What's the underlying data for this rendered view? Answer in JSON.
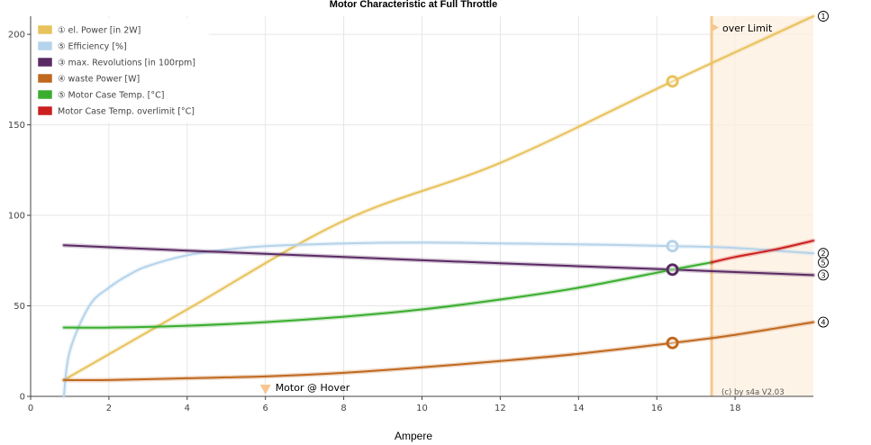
{
  "chart_data": {
    "type": "line",
    "title": "Motor Characteristic at Full Throttle",
    "xlabel": "Ampere",
    "ylabel": "",
    "xlim": [
      0,
      20
    ],
    "ylim": [
      0,
      210
    ],
    "x_ticks": [
      "0",
      "2",
      "4",
      "6",
      "8",
      "10",
      "12",
      "14",
      "16",
      "18"
    ],
    "y_ticks": [
      "0",
      "50",
      "100",
      "150",
      "200"
    ],
    "grid": true,
    "legend_position": "top-left",
    "series": [
      {
        "name": "① el. Power [in 2W]",
        "marker": "①",
        "color": "#e8c25c",
        "x": [
          0.85,
          4,
          8,
          12,
          16.4,
          20
        ],
        "y": [
          9,
          48,
          97,
          129,
          174,
          210
        ]
      },
      {
        "name": "⑤ Efficiency [%]",
        "marker": "②",
        "color": "#b5d3ea",
        "x": [
          0.85,
          1.0,
          1.5,
          2,
          2.5,
          3,
          4,
          5,
          6,
          8,
          10,
          12,
          14,
          16.4,
          18,
          20
        ],
        "y": [
          0,
          25,
          50,
          60,
          67,
          72,
          78,
          81,
          83,
          84.5,
          85,
          84.5,
          84,
          83,
          82,
          79
        ]
      },
      {
        "name": "③ max. Revolutions [in 100rpm]",
        "marker": "③",
        "color": "#5a2a64",
        "x": [
          0.85,
          4,
          8,
          12,
          16.4,
          20
        ],
        "y": [
          83.5,
          80.5,
          77,
          73.5,
          70,
          67
        ]
      },
      {
        "name": "④ waste Power [W]",
        "marker": "④",
        "color": "#c0681e",
        "x": [
          0.85,
          2,
          4,
          6,
          8,
          10,
          12,
          14,
          16.4,
          18,
          20
        ],
        "y": [
          9,
          9,
          10,
          11,
          13,
          16,
          19.5,
          23.5,
          29.5,
          34,
          41
        ]
      },
      {
        "name": "⑤ Motor Case Temp. [°C]",
        "marker": "⑤",
        "color": "#3aad2e",
        "x": [
          0.85,
          2,
          4,
          6,
          8,
          10,
          12,
          14,
          16.4,
          17.4
        ],
        "y": [
          38,
          38,
          39,
          41,
          44,
          48,
          53.5,
          60,
          70,
          74
        ]
      },
      {
        "name": "Motor Case Temp. overlimit [°C]",
        "marker": "",
        "color": "#cc1f1f",
        "x": [
          17.4,
          18,
          19,
          20
        ],
        "y": [
          74,
          77,
          81,
          86
        ]
      }
    ],
    "highlight_points": [
      {
        "series": "① el. Power [in 2W]",
        "x": 16.4,
        "y": 174
      },
      {
        "series": "⑤ Efficiency [%]",
        "x": 16.4,
        "y": 83
      },
      {
        "series": "③ max. Revolutions [in 100rpm]",
        "x": 16.4,
        "y": 70
      },
      {
        "series": "④ waste Power [W]",
        "x": 16.4,
        "y": 29.5
      }
    ],
    "over_limit": {
      "x_start": 17.4,
      "label": "over Limit"
    },
    "hover": {
      "x": 6,
      "label": "Motor @ Hover"
    },
    "copyright": "(c) by s4a  V2.03"
  }
}
